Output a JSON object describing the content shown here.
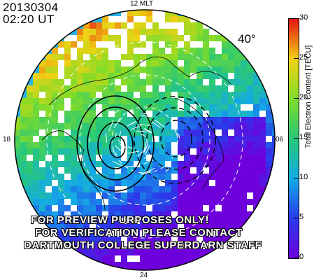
{
  "header": {
    "date": "20130304",
    "time": "02:20 UT"
  },
  "map": {
    "mlt_labels": {
      "top": "12 MLT",
      "left": "18",
      "right": "06",
      "bottom": "24"
    },
    "lat_label": "40°"
  },
  "colorbar": {
    "title": "Total Electron Content [TECU]",
    "ticks": [
      "30",
      "25",
      "20",
      "15",
      "10",
      "5",
      "0"
    ],
    "min": 0,
    "max": 30
  },
  "watermark": {
    "line1": "FOR PREVIEW PURPOSES ONLY!",
    "line2": "FOR VERIFICATION PLEASE CONTACT",
    "line3": "DARTMOUTH COLLEGE SUPERDARN STAFF"
  }
}
